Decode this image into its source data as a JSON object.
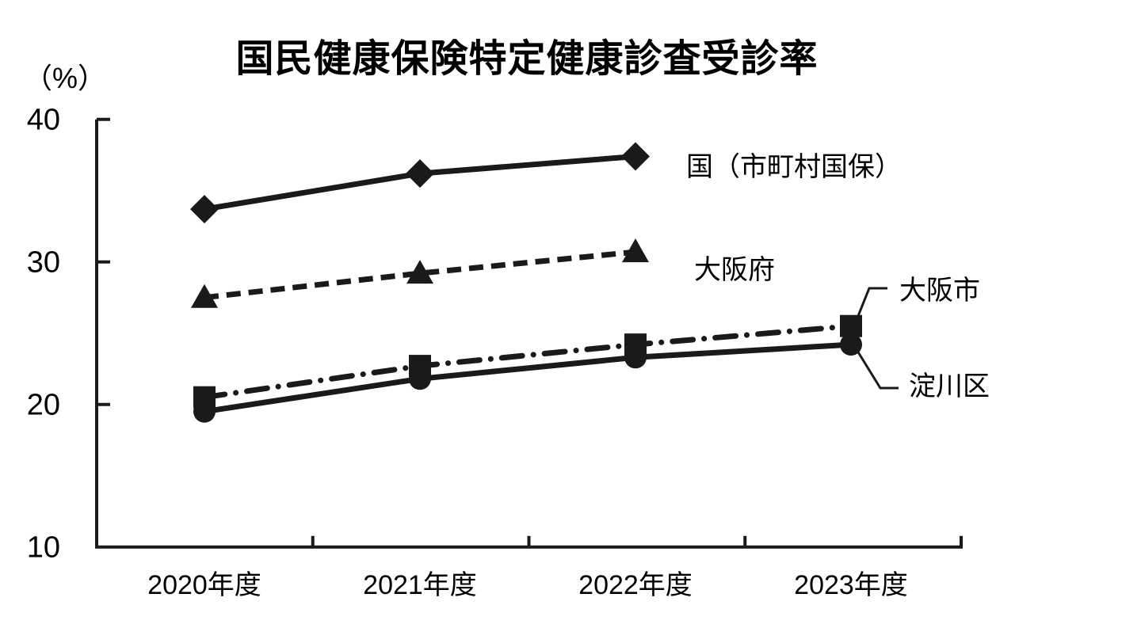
{
  "title": "国民健康保険特定健康診査受診率",
  "chart_data": {
    "type": "line",
    "title": "国民健康保険特定健康診査受診率",
    "ylabel": "（%）",
    "xlabel": "",
    "categories": [
      "2020年度",
      "2021年度",
      "2022年度",
      "2023年度"
    ],
    "ylim": [
      10,
      40
    ],
    "yticks": [
      40,
      30,
      20,
      10
    ],
    "grid": false,
    "legend_position": "direct-annotations",
    "line_color": "#1a1a1a",
    "text_color": "#000000",
    "series": [
      {
        "name": "国（市町村国保）",
        "values": [
          33.7,
          36.2,
          37.4,
          null
        ],
        "marker": "diamond",
        "line_style": "solid"
      },
      {
        "name": "大阪府",
        "values": [
          27.5,
          29.2,
          30.7,
          null
        ],
        "marker": "triangle",
        "line_style": "dashed"
      },
      {
        "name": "大阪市",
        "values": [
          20.5,
          22.7,
          24.2,
          25.5
        ],
        "marker": "square",
        "line_style": "dash-dot",
        "label_leader": true
      },
      {
        "name": "淀川区",
        "values": [
          19.5,
          21.8,
          23.3,
          24.2
        ],
        "marker": "circle",
        "line_style": "solid",
        "label_leader": true
      }
    ]
  }
}
